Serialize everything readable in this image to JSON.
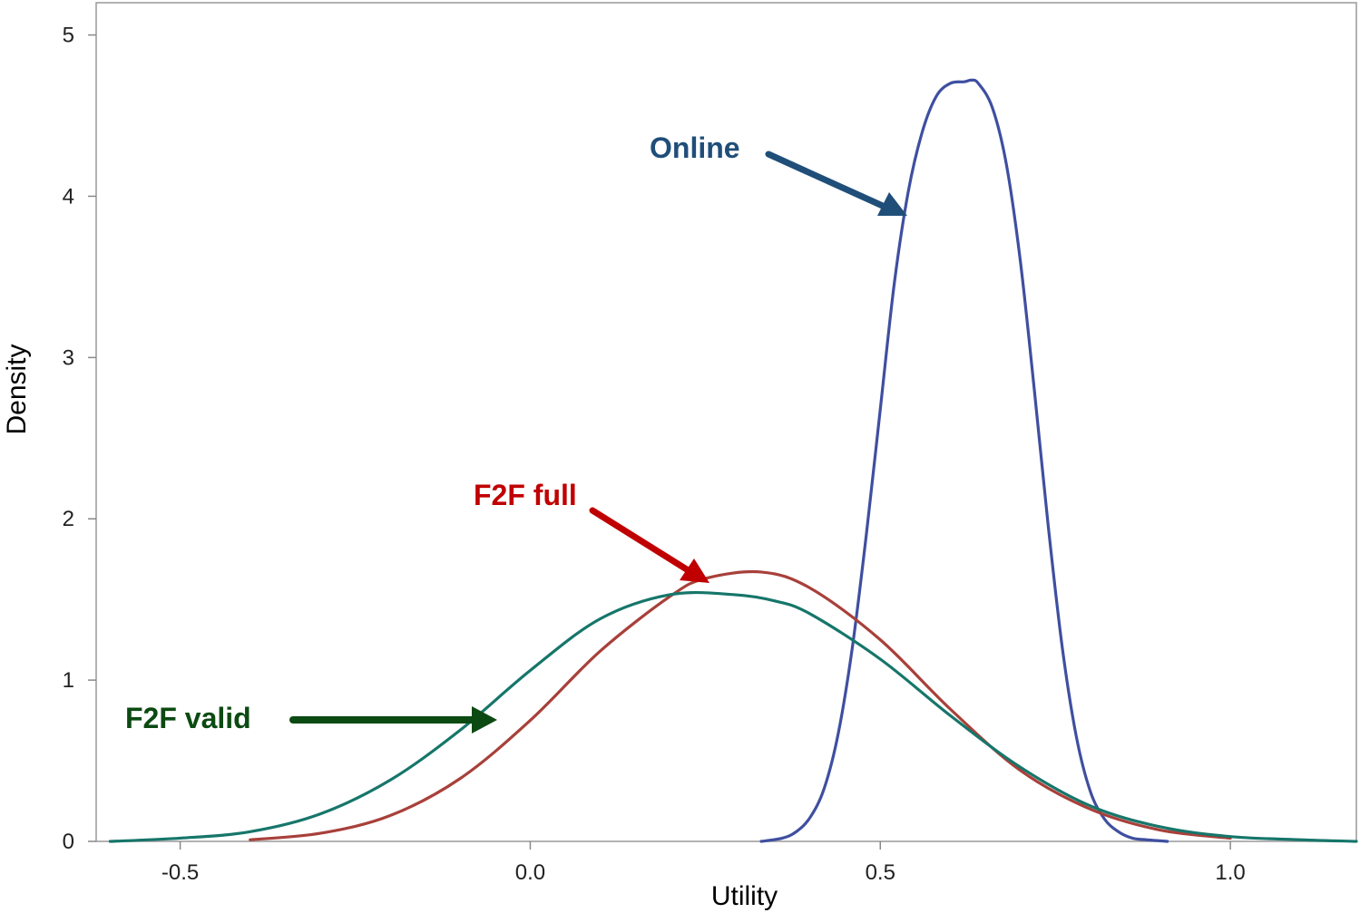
{
  "chart_data": {
    "type": "line",
    "title": "",
    "xlabel": "Utility",
    "ylabel": "Density",
    "xlim": [
      -0.62,
      1.18
    ],
    "ylim": [
      0,
      5.2
    ],
    "x_ticks": [
      -0.5,
      0.0,
      0.5,
      1.0
    ],
    "x_tick_labels": [
      "-0.5",
      "0.0",
      "0.5",
      "1.0"
    ],
    "y_ticks": [
      0,
      1,
      2,
      3,
      4,
      5
    ],
    "y_tick_labels": [
      "0",
      "1",
      "2",
      "3",
      "4",
      "5"
    ],
    "grid": false,
    "legend": "none",
    "colors": {
      "online_line": "#3f4fa0",
      "f2f_full_line": "#a8403a",
      "f2f_valid_line": "#16766a",
      "online_text": "#1f4e79",
      "f2f_full_text": "#c00000",
      "f2f_valid_text": "#0b4a12",
      "axis": "#888888"
    },
    "series": [
      {
        "name": "Online",
        "color": "#3f4fa0",
        "x": [
          0.33,
          0.36,
          0.38,
          0.4,
          0.42,
          0.44,
          0.46,
          0.48,
          0.5,
          0.52,
          0.54,
          0.56,
          0.58,
          0.6,
          0.62,
          0.63,
          0.64,
          0.66,
          0.68,
          0.7,
          0.72,
          0.74,
          0.76,
          0.78,
          0.8,
          0.82,
          0.84,
          0.86,
          0.88,
          0.91
        ],
        "y": [
          0.0,
          0.02,
          0.06,
          0.15,
          0.33,
          0.67,
          1.2,
          1.9,
          2.68,
          3.46,
          4.03,
          4.4,
          4.62,
          4.7,
          4.71,
          4.72,
          4.7,
          4.55,
          4.2,
          3.6,
          2.8,
          1.95,
          1.2,
          0.65,
          0.31,
          0.14,
          0.06,
          0.02,
          0.01,
          0.0
        ]
      },
      {
        "name": "F2F full",
        "color": "#a8403a",
        "x": [
          -0.4,
          -0.3,
          -0.2,
          -0.1,
          0.0,
          0.1,
          0.2,
          0.25,
          0.33,
          0.4,
          0.5,
          0.6,
          0.7,
          0.8,
          0.9,
          1.0
        ],
        "y": [
          0.01,
          0.05,
          0.16,
          0.39,
          0.75,
          1.18,
          1.52,
          1.63,
          1.67,
          1.57,
          1.25,
          0.82,
          0.44,
          0.2,
          0.07,
          0.02
        ]
      },
      {
        "name": "F2F valid",
        "color": "#16766a",
        "x": [
          -0.6,
          -0.5,
          -0.4,
          -0.3,
          -0.2,
          -0.1,
          0.0,
          0.1,
          0.2,
          0.29,
          0.35,
          0.4,
          0.5,
          0.6,
          0.7,
          0.8,
          0.9,
          1.0,
          1.1,
          1.18
        ],
        "y": [
          0.0,
          0.02,
          0.06,
          0.17,
          0.38,
          0.69,
          1.06,
          1.38,
          1.53,
          1.53,
          1.49,
          1.41,
          1.13,
          0.78,
          0.46,
          0.22,
          0.09,
          0.03,
          0.01,
          0.0
        ]
      }
    ],
    "annotations": [
      {
        "text": "Online",
        "color": "#1f4e79",
        "points_to": [
          0.55,
          4.0
        ]
      },
      {
        "text": "F2F full",
        "color": "#c00000",
        "points_to": [
          0.265,
          1.63
        ]
      },
      {
        "text": "F2F valid",
        "color": "#0b4a12",
        "points_to": [
          -0.04,
          0.75
        ]
      }
    ]
  }
}
